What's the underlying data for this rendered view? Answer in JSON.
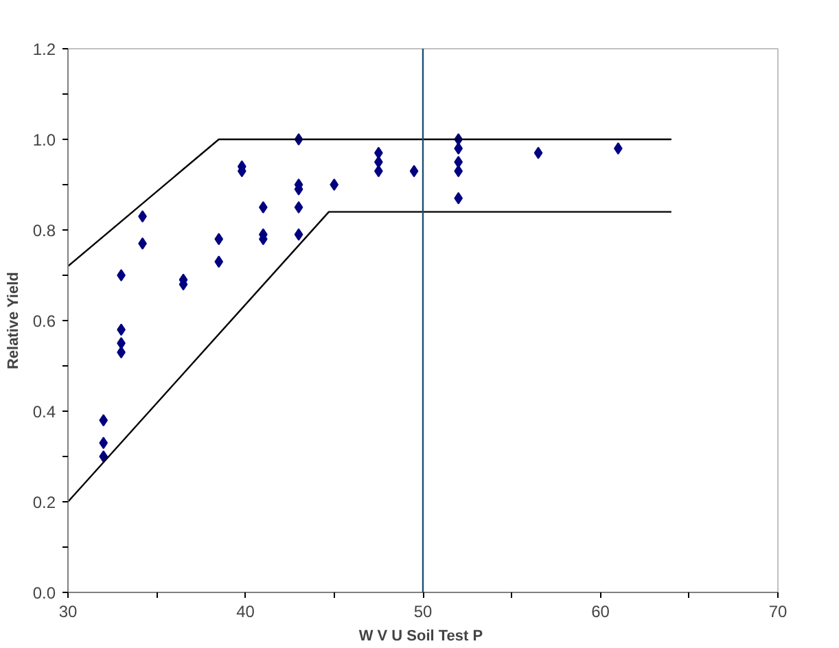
{
  "chart_data": {
    "type": "scatter",
    "xlabel": "W V U  Soil Test P",
    "ylabel": "Relative Yield",
    "marker": "diamond",
    "grid": false,
    "xlim": [
      30,
      70
    ],
    "ylim": [
      0,
      1.2
    ],
    "xticks": [
      30,
      {
        "value": 35,
        "label": null
      },
      40,
      {
        "value": 45,
        "label": null
      },
      50,
      {
        "value": 55,
        "label": null
      },
      60,
      {
        "value": 65,
        "label": null
      },
      70
    ],
    "yticks": [
      {
        "value": 0,
        "label": "0.0"
      },
      {
        "value": 0.1,
        "label": null
      },
      0.2,
      {
        "value": 0.3,
        "label": null
      },
      0.4,
      {
        "value": 0.5,
        "label": null
      },
      0.6,
      {
        "value": 0.7,
        "label": null
      },
      0.8,
      {
        "value": 0.9,
        "label": null
      },
      {
        "value": 1,
        "label": "1.0"
      },
      {
        "value": 1.1,
        "label": null
      },
      1.2
    ],
    "series": [
      {
        "color": "#000080",
        "x": [
          32,
          32,
          32,
          33,
          33,
          33,
          33,
          34.2,
          34.2,
          36.5,
          36.5,
          38.5,
          38.5,
          39.8,
          39.8,
          41,
          41,
          41,
          43,
          43,
          43,
          43,
          43,
          45,
          47.5,
          47.5,
          47.5,
          49.5,
          52,
          52,
          52,
          52,
          52,
          56.5,
          61
        ],
        "values": [
          0.38,
          0.33,
          0.3,
          0.7,
          0.58,
          0.55,
          0.53,
          0.83,
          0.77,
          0.69,
          0.68,
          0.78,
          0.73,
          0.94,
          0.93,
          0.85,
          0.79,
          0.78,
          1.0,
          0.9,
          0.89,
          0.85,
          0.79,
          0.9,
          0.97,
          0.95,
          0.93,
          0.93,
          1.0,
          0.98,
          0.95,
          0.93,
          0.87,
          0.97,
          0.98
        ]
      },
      {
        "type": "line",
        "color": "#000000",
        "marker": "none",
        "line_style": "solid",
        "x": [
          30,
          38.5,
          64
        ],
        "values": [
          0.72,
          1.0,
          1.0
        ]
      },
      {
        "type": "line",
        "color": "#000000",
        "marker": "none",
        "line_style": "solid",
        "x": [
          30,
          44.7,
          64
        ],
        "values": [
          0.2,
          0.84,
          0.84
        ]
      }
    ],
    "ref_lines": [
      {
        "axis": "x",
        "value": 50,
        "color": "#1f4e79",
        "line_style": "solid"
      }
    ]
  }
}
